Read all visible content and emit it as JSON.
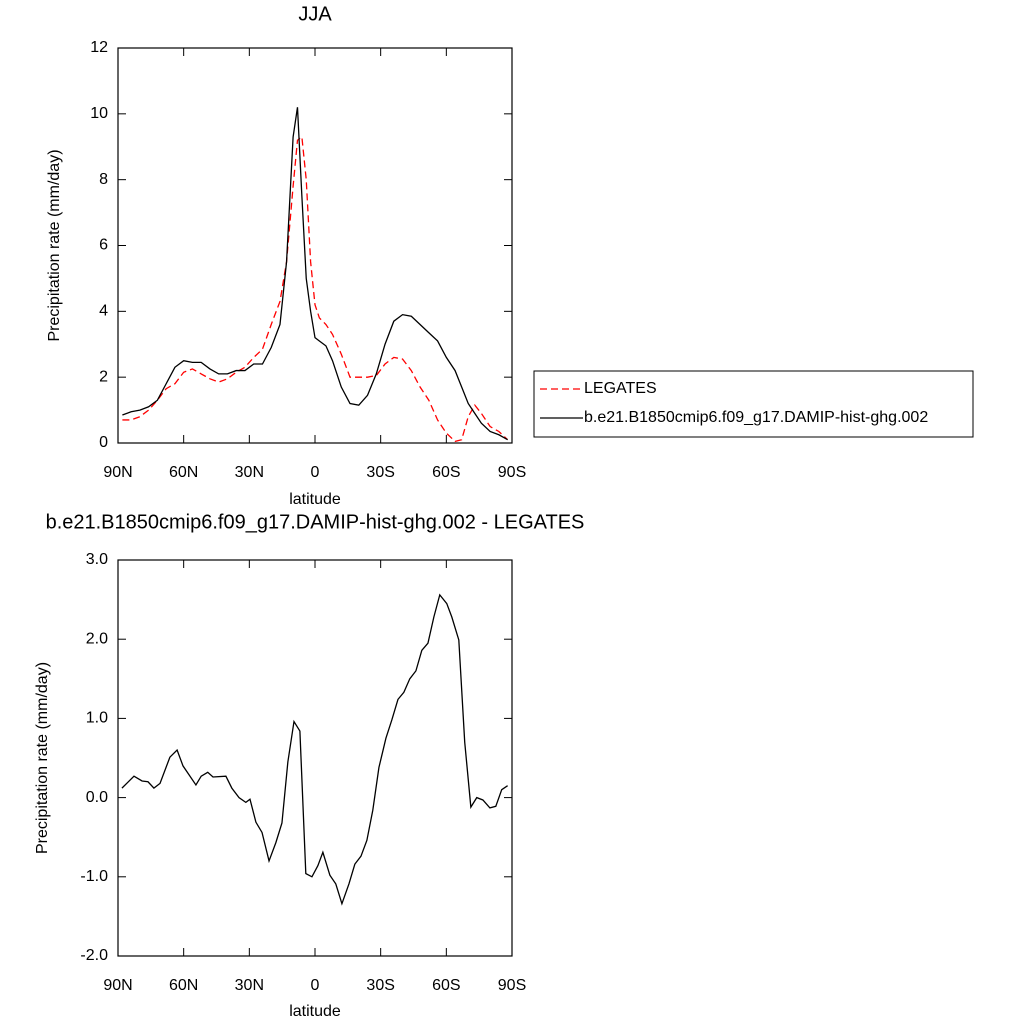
{
  "chart_data": [
    {
      "type": "line",
      "title": "JJA",
      "xlabel": "latitude",
      "ylabel": "Precipitation rate (mm/day)",
      "x": [
        88,
        84,
        80,
        76,
        72,
        68,
        64,
        60,
        56,
        52,
        48,
        44,
        40,
        36,
        32,
        28,
        24,
        20,
        16,
        13,
        10,
        8,
        6,
        4,
        2,
        0,
        -2,
        -5,
        -8,
        -12,
        -16,
        -20,
        -24,
        -28,
        -32,
        -36,
        -40,
        -44,
        -48,
        -52,
        -56,
        -60,
        -64,
        -67,
        -70,
        -73,
        -76,
        -80,
        -84,
        -88
      ],
      "series": [
        {
          "name": "LEGATES",
          "color": "#ff0000",
          "line_style": "dashed",
          "values": [
            0.7,
            0.7,
            0.8,
            1.0,
            1.3,
            1.65,
            1.8,
            2.15,
            2.25,
            2.1,
            1.95,
            1.85,
            1.95,
            2.15,
            2.3,
            2.6,
            2.85,
            3.6,
            4.3,
            5.5,
            7.8,
            9.2,
            9.3,
            8.0,
            5.5,
            4.2,
            3.8,
            3.6,
            3.3,
            2.7,
            2.0,
            2.0,
            2.0,
            2.05,
            2.4,
            2.6,
            2.55,
            2.2,
            1.7,
            1.3,
            0.7,
            0.3,
            0.05,
            0.1,
            0.8,
            1.15,
            0.9,
            0.5,
            0.35,
            0.1
          ]
        },
        {
          "name": "b.e21.B1850cmip6.f09_g17.DAMIP-hist-ghg.002",
          "color": "#000000",
          "line_style": "solid",
          "values": [
            0.85,
            0.95,
            1.0,
            1.1,
            1.3,
            1.8,
            2.3,
            2.5,
            2.45,
            2.45,
            2.25,
            2.1,
            2.1,
            2.2,
            2.2,
            2.4,
            2.4,
            2.9,
            3.6,
            5.5,
            9.3,
            10.2,
            7.5,
            5.0,
            4.0,
            3.2,
            3.1,
            2.95,
            2.5,
            1.7,
            1.2,
            1.15,
            1.45,
            2.1,
            3.0,
            3.7,
            3.9,
            3.85,
            3.6,
            3.35,
            3.1,
            2.6,
            2.2,
            1.7,
            1.2,
            0.9,
            0.6,
            0.35,
            0.25,
            0.1
          ]
        }
      ],
      "xlim": [
        90,
        -90
      ],
      "xticks": [
        {
          "value": 90,
          "label": "90N"
        },
        {
          "value": 60,
          "label": "60N"
        },
        {
          "value": 30,
          "label": "30N"
        },
        0,
        {
          "value": -30,
          "label": "30S"
        },
        {
          "value": -60,
          "label": "60S"
        },
        {
          "value": -90,
          "label": "90S"
        }
      ],
      "ylim": [
        0,
        12
      ],
      "yticks": [
        0,
        2,
        4,
        6,
        8,
        10,
        12
      ],
      "legend": "right"
    },
    {
      "type": "line",
      "title": "b.e21.B1850cmip6.f09_g17.DAMIP-hist-ghg.002 - LEGATES",
      "xlabel": "latitude",
      "ylabel": "Precipitation rate (mm/day)",
      "x": [
        88.2,
        82.7,
        79,
        76.3,
        73.6,
        70.8,
        66.3,
        63,
        60.3,
        54.4,
        52,
        49,
        46.6,
        40.7,
        38,
        34.7,
        31.6,
        29.7,
        27,
        24.2,
        21,
        17.9,
        15.1,
        12.4,
        9.6,
        6.9,
        4.2,
        1.4,
        -1.3,
        -3.6,
        -6.8,
        -9.5,
        -12.3,
        -15.5,
        -18.2,
        -21,
        -23.7,
        -26.4,
        -29.2,
        -32.4,
        -35.1,
        -37.9,
        -40.6,
        -43.3,
        -46.1,
        -48.8,
        -51.6,
        -54.3,
        -57,
        -60.2,
        -62.5,
        -65.7,
        -68.4,
        -71.2,
        -73.9,
        -76.7,
        -79.9,
        -82.6,
        -85.3,
        -88
      ],
      "values": [
        0.12,
        0.27,
        0.21,
        0.2,
        0.12,
        0.18,
        0.51,
        0.6,
        0.4,
        0.16,
        0.27,
        0.32,
        0.26,
        0.27,
        0.12,
        0,
        -0.06,
        -0.02,
        -0.31,
        -0.44,
        -0.8,
        -0.57,
        -0.32,
        0.45,
        0.96,
        0.84,
        -0.96,
        -1.0,
        -0.86,
        -0.69,
        -0.98,
        -1.09,
        -1.34,
        -1.09,
        -0.84,
        -0.74,
        -0.54,
        -0.16,
        0.38,
        0.75,
        0.98,
        1.24,
        1.33,
        1.5,
        1.6,
        1.86,
        1.95,
        2.28,
        2.56,
        2.45,
        2.28,
        1.99,
        0.7,
        -0.12,
        0.0,
        -0.03,
        -0.13,
        -0.11,
        0.1,
        0.15
      ],
      "color": "#000000",
      "xlim": [
        90,
        -90
      ],
      "xticks": [
        {
          "value": 90,
          "label": "90N"
        },
        {
          "value": 60,
          "label": "60N"
        },
        {
          "value": 30,
          "label": "30N"
        },
        0,
        {
          "value": -30,
          "label": "30S"
        },
        {
          "value": -60,
          "label": "60S"
        },
        {
          "value": -90,
          "label": "90S"
        }
      ],
      "ylim": [
        -2,
        3
      ],
      "yticks": [
        {
          "value": -2,
          "label": "-2.0"
        },
        {
          "value": -1,
          "label": "-1.0"
        },
        {
          "value": 0,
          "label": "0.0"
        },
        {
          "value": 1,
          "label": "1.0"
        },
        {
          "value": 2,
          "label": "2.0"
        },
        {
          "value": 3,
          "label": "3.0"
        }
      ]
    }
  ]
}
